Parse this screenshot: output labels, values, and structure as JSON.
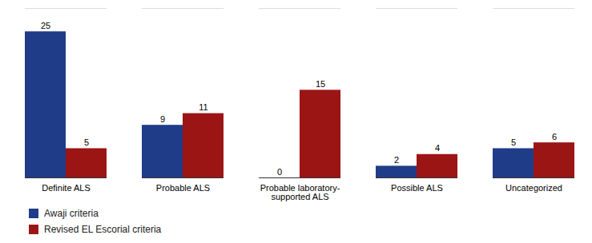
{
  "chart_data": {
    "type": "bar",
    "categories": [
      "Definite ALS",
      "Probable ALS",
      "Probable laboratory-\nsupported ALS",
      "Possible ALS",
      "Uncategorized"
    ],
    "series": [
      {
        "name": "Awaji criteria",
        "color": "#1F3C88",
        "values": [
          25,
          9,
          0,
          2,
          5
        ]
      },
      {
        "name": "Revised EL Escorial criteria",
        "color": "#9B1515",
        "values": [
          5,
          11,
          15,
          4,
          6
        ]
      }
    ],
    "ylim": [
      0,
      29
    ],
    "data_labels": true,
    "tick_labels": "x",
    "grid": false,
    "legend": "lower left"
  }
}
